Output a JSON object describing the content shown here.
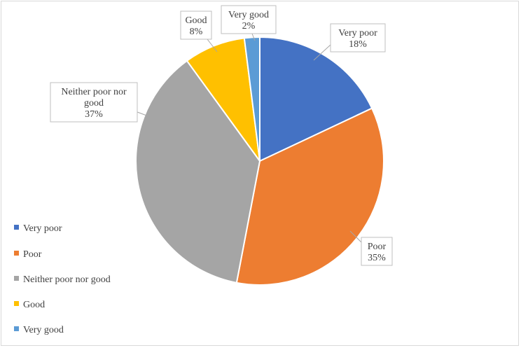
{
  "chart_data": {
    "type": "pie",
    "title": "",
    "categories": [
      "Very poor",
      "Poor",
      "Neither poor nor good",
      "Good",
      "Very good"
    ],
    "values": [
      18,
      35,
      37,
      8,
      2
    ],
    "value_labels": [
      "18%",
      "35%",
      "37%",
      "8%",
      "2%"
    ],
    "colors": [
      "#4472C4",
      "#ED7D31",
      "#A5A5A5",
      "#FFC000",
      "#5B9BD5"
    ],
    "legend_position": "left-bottom",
    "start_angle_deg": 0,
    "direction": "clockwise"
  }
}
